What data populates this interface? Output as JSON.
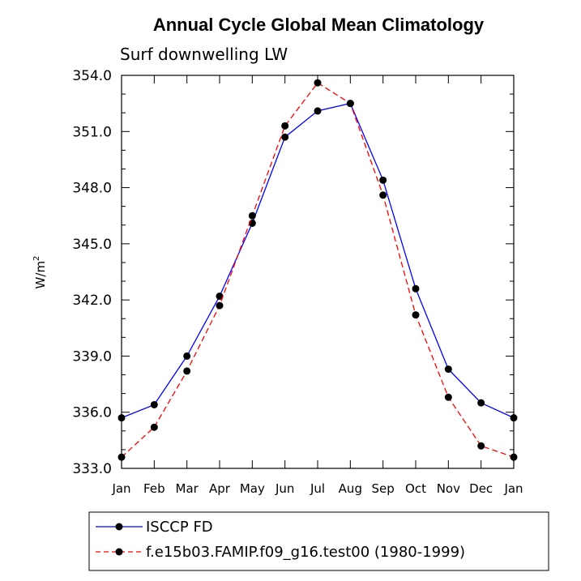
{
  "chart_data": {
    "type": "line",
    "title": "Annual Cycle Global Mean Climatology",
    "subtitle": "Surf downwelling LW",
    "xlabel": "",
    "ylabel": "W/m",
    "ylabel_superscript": "2",
    "categories": [
      "Jan",
      "Feb",
      "Mar",
      "Apr",
      "May",
      "Jun",
      "Jul",
      "Aug",
      "Sep",
      "Oct",
      "Nov",
      "Dec",
      "Jan"
    ],
    "ylim": [
      333.0,
      354.0
    ],
    "yticks": [
      "333.0",
      "336.0",
      "339.0",
      "342.0",
      "345.0",
      "348.0",
      "351.0",
      "354.0"
    ],
    "ytick_values": [
      333.0,
      336.0,
      339.0,
      342.0,
      345.0,
      348.0,
      351.0,
      354.0
    ],
    "grid": false,
    "legend_position": "bottom",
    "series": [
      {
        "name": "ISCCP FD",
        "color": "#0000ff",
        "style": "solid",
        "values": [
          335.7,
          336.4,
          339.0,
          342.2,
          346.1,
          350.7,
          352.1,
          352.5,
          348.4,
          342.6,
          338.3,
          336.5,
          335.7
        ]
      },
      {
        "name": "f.e15b03.FAMIP.f09_g16.test00 (1980-1999)",
        "color": "#ff0000",
        "style": "dashed",
        "values": [
          333.6,
          335.2,
          338.2,
          341.7,
          346.5,
          351.3,
          353.6,
          352.5,
          347.6,
          341.2,
          336.8,
          334.2,
          333.6
        ]
      }
    ]
  }
}
